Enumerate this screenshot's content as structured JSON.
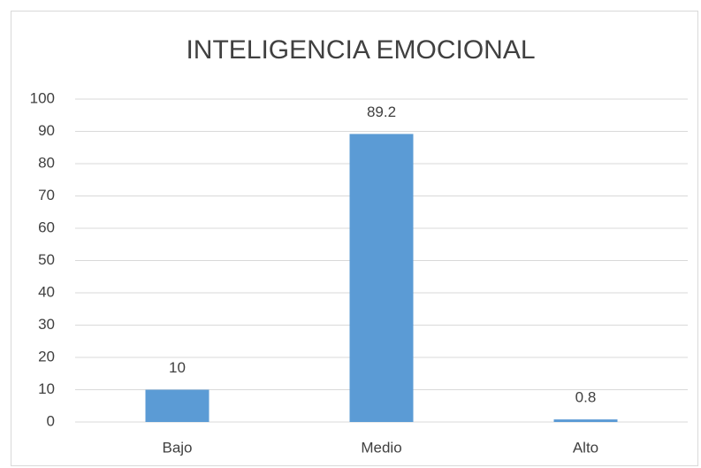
{
  "chart_data": {
    "type": "bar",
    "title": "INTELIGENCIA EMOCIONAL",
    "categories": [
      "Bajo",
      "Medio",
      "Alto"
    ],
    "values": [
      10,
      89.2,
      0.8
    ],
    "color": "#5b9bd5",
    "ylim": [
      0,
      100
    ],
    "yticks": [
      0,
      10,
      20,
      30,
      40,
      50,
      60,
      70,
      80,
      90,
      100
    ],
    "grid": true,
    "data_labels": true
  }
}
